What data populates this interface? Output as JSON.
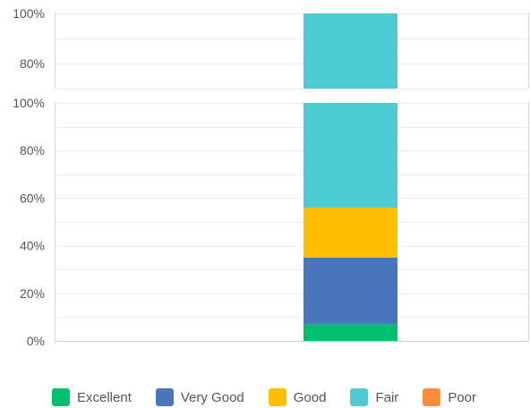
{
  "chart_data": [
    {
      "type": "bar",
      "stacked": true,
      "categories": [
        ""
      ],
      "series": [
        {
          "name": "Fair",
          "values": [
            100
          ],
          "color": "#4ecbd2"
        }
      ],
      "y_ticks": [
        "80%",
        "100%"
      ],
      "ylim": [
        70,
        100
      ],
      "grid": true,
      "legend": "none"
    },
    {
      "type": "bar",
      "stacked": true,
      "categories": [
        ""
      ],
      "series": [
        {
          "name": "Excellent",
          "values": [
            7
          ],
          "color": "#00bf6f"
        },
        {
          "name": "Very Good",
          "values": [
            28
          ],
          "color": "#4a76bd"
        },
        {
          "name": "Good",
          "values": [
            21
          ],
          "color": "#ffbf00"
        },
        {
          "name": "Fair",
          "values": [
            44
          ],
          "color": "#4ecbd2"
        },
        {
          "name": "Poor",
          "values": [
            0
          ],
          "color": "#ff8b3d"
        }
      ],
      "y_ticks": [
        "0%",
        "20%",
        "40%",
        "60%",
        "80%",
        "100%"
      ],
      "ylim": [
        0,
        100
      ],
      "grid": true,
      "legend": "bottom"
    }
  ],
  "legend": [
    {
      "label": "Excellent",
      "color": "#00bf6f"
    },
    {
      "label": "Very Good",
      "color": "#4a76bd"
    },
    {
      "label": "Good",
      "color": "#ffbf00"
    },
    {
      "label": "Fair",
      "color": "#4ecbd2"
    },
    {
      "label": "Poor",
      "color": "#ff8b3d"
    }
  ]
}
